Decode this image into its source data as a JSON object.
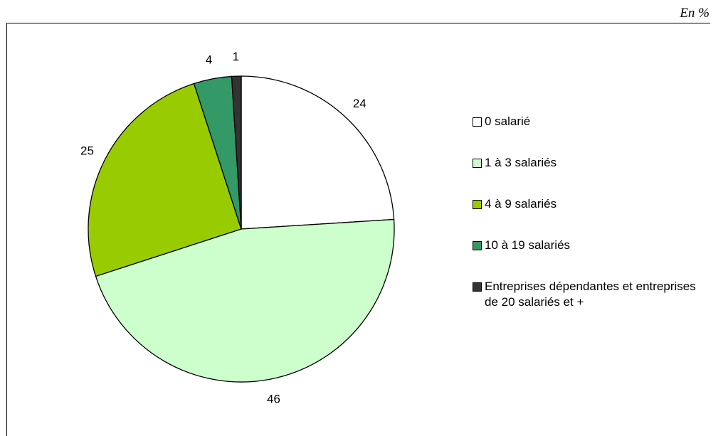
{
  "unit_label": "En %",
  "chart_data": {
    "type": "pie",
    "slices": [
      {
        "label": "0 salarié",
        "value": 24,
        "color": "#ffffff"
      },
      {
        "label": "1 à 3 salariés",
        "value": 46,
        "color": "#ccffcc"
      },
      {
        "label": "4 à 9 salariés",
        "value": 25,
        "color": "#99cc00"
      },
      {
        "label": "10 à 19 salariés",
        "value": 4,
        "color": "#339966"
      },
      {
        "label": "Entreprises dépendantes et entreprises de 20 salariés et +",
        "value": 1,
        "color": "#333333"
      }
    ],
    "legend_position": "right",
    "start_angle_deg": 0,
    "direction": "clockwise"
  }
}
